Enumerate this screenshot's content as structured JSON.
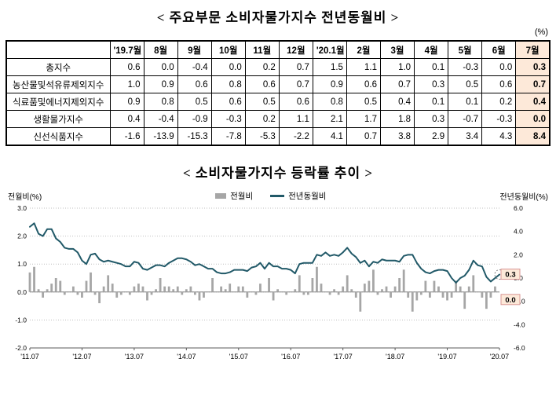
{
  "page": {
    "percent_label": "(%)"
  },
  "title1": "< 주요부문 소비자물가지수 전년동월비 >",
  "title2": "< 소비자물가지수 등락률 추이 >",
  "table": {
    "corner": "",
    "columns": [
      "'19.7월",
      "8월",
      "9월",
      "10월",
      "11월",
      "12월",
      "'20.1월",
      "2월",
      "3월",
      "4월",
      "5월",
      "6월",
      "7월"
    ],
    "highlight_column": "7월",
    "highlight_color": "#FDE9D9",
    "rows": [
      {
        "label": "총지수",
        "values": [
          "0.6",
          "0.0",
          "-0.4",
          "0.0",
          "0.2",
          "0.7",
          "1.5",
          "1.1",
          "1.0",
          "0.1",
          "-0.3",
          "0.0",
          "0.3"
        ]
      },
      {
        "label": "농산물및석유류제외지수",
        "values": [
          "1.0",
          "0.9",
          "0.6",
          "0.8",
          "0.6",
          "0.7",
          "0.9",
          "0.6",
          "0.7",
          "0.3",
          "0.5",
          "0.6",
          "0.7"
        ]
      },
      {
        "label": "식료품및에너지제외지수",
        "values": [
          "0.9",
          "0.8",
          "0.5",
          "0.6",
          "0.5",
          "0.6",
          "0.8",
          "0.5",
          "0.4",
          "0.1",
          "0.1",
          "0.2",
          "0.4"
        ]
      },
      {
        "label": "생활물가지수",
        "values": [
          "0.4",
          "-0.4",
          "-0.9",
          "-0.3",
          "0.2",
          "1.1",
          "2.1",
          "1.7",
          "1.8",
          "0.3",
          "-0.7",
          "-0.3",
          "0.0"
        ]
      },
      {
        "label": "신선식품지수",
        "values": [
          "-1.6",
          "-13.9",
          "-15.3",
          "-7.8",
          "-5.3",
          "-2.2",
          "4.1",
          "0.7",
          "3.8",
          "2.9",
          "3.4",
          "4.3",
          "8.4"
        ]
      }
    ]
  },
  "chart_data": {
    "type": "bar+line",
    "title": "소비자물가지수 등락률 추이",
    "legend": [
      {
        "name": "전월비",
        "type": "bar",
        "color": "#A6A6A6"
      },
      {
        "name": "전년동월비",
        "type": "line",
        "color": "#215968"
      }
    ],
    "left_axis": {
      "label": "전월비(%)",
      "max": 3.0,
      "min": -2.0,
      "ticks": [
        3.0,
        2.0,
        1.0,
        0.0,
        -1.0,
        -2.0
      ]
    },
    "right_axis": {
      "label": "전년동월비(%)",
      "max": 6.0,
      "min": -6.0,
      "ticks": [
        6.0,
        4.0,
        2.0,
        0.0,
        -2.0,
        -4.0,
        -6.0
      ]
    },
    "x_ticks": [
      "'11.07",
      "'12.07",
      "'13.07",
      "'14.07",
      "'15.07",
      "'16.07",
      "'17.07",
      "'18.07",
      "'19.07",
      "'20.07"
    ],
    "grid": true,
    "series": [
      {
        "name": "전월비",
        "axis": "left",
        "type": "bar",
        "color": "#A6A6A6",
        "values": [
          0.7,
          0.9,
          0.1,
          -0.2,
          0.1,
          0.3,
          0.5,
          0.4,
          -0.1,
          0.0,
          0.2,
          -0.1,
          -0.2,
          0.4,
          0.7,
          -0.1,
          -0.4,
          0.2,
          0.6,
          0.3,
          -0.2,
          -0.1,
          0.0,
          -0.1,
          0.2,
          0.3,
          0.2,
          -0.3,
          -0.1,
          0.1,
          0.5,
          0.2,
          0.2,
          0.1,
          0.2,
          -0.1,
          0.1,
          0.2,
          -0.1,
          -0.3,
          -0.2,
          0.0,
          0.5,
          0.0,
          0.2,
          0.1,
          0.3,
          0.0,
          0.2,
          0.2,
          -0.2,
          0.0,
          -0.1,
          0.3,
          0.0,
          0.5,
          -0.3,
          0.1,
          0.0,
          -0.1,
          0.0,
          0.1,
          0.6,
          -0.1,
          -0.1,
          0.5,
          0.9,
          0.3,
          0.0,
          -0.1,
          0.1,
          -0.1,
          0.2,
          0.6,
          0.1,
          -0.2,
          -0.7,
          0.3,
          0.4,
          0.8,
          -0.1,
          0.1,
          0.2,
          -0.2,
          0.2,
          0.5,
          0.8,
          -0.2,
          -0.7,
          -0.3,
          -0.1,
          0.4,
          -0.2,
          0.4,
          0.2,
          -0.2,
          -0.3,
          -0.2,
          0.4,
          0.2,
          -0.6,
          0.2,
          0.6,
          0.0,
          -0.2,
          -0.6,
          -0.2,
          0.2,
          0.0
        ]
      },
      {
        "name": "전년동월비",
        "axis": "right",
        "type": "line",
        "color": "#215968",
        "values": [
          4.4,
          4.7,
          3.8,
          3.6,
          4.2,
          4.2,
          3.4,
          3.1,
          2.6,
          2.5,
          2.5,
          2.2,
          1.5,
          1.2,
          2.0,
          2.1,
          1.6,
          1.4,
          1.5,
          1.4,
          1.3,
          1.2,
          1.0,
          1.0,
          1.4,
          1.3,
          0.8,
          0.7,
          0.9,
          1.1,
          1.1,
          1.0,
          1.3,
          1.5,
          1.7,
          1.7,
          1.6,
          1.4,
          1.1,
          1.2,
          1.0,
          0.8,
          0.8,
          0.5,
          0.4,
          0.4,
          0.5,
          0.7,
          0.7,
          0.7,
          0.6,
          0.9,
          1.0,
          1.3,
          0.8,
          1.3,
          1.0,
          1.0,
          0.8,
          0.8,
          0.7,
          0.4,
          1.2,
          1.3,
          1.3,
          1.3,
          2.0,
          1.9,
          2.2,
          1.9,
          2.0,
          1.9,
          2.2,
          2.6,
          2.1,
          1.8,
          1.3,
          1.5,
          1.0,
          1.4,
          1.3,
          1.6,
          1.5,
          1.5,
          1.5,
          1.4,
          1.9,
          2.0,
          2.0,
          1.3,
          0.8,
          0.5,
          0.4,
          0.6,
          0.7,
          0.7,
          0.6,
          0.0,
          -0.4,
          0.0,
          0.2,
          0.7,
          1.5,
          1.1,
          1.0,
          0.1,
          -0.3,
          0.0,
          0.3
        ]
      }
    ],
    "annotations": [
      {
        "text": "0.3",
        "series": "전년동월비",
        "fill": "#FDE9D9"
      },
      {
        "text": "0.0",
        "series": "전월비",
        "fill": "#FDE9D9"
      }
    ]
  }
}
